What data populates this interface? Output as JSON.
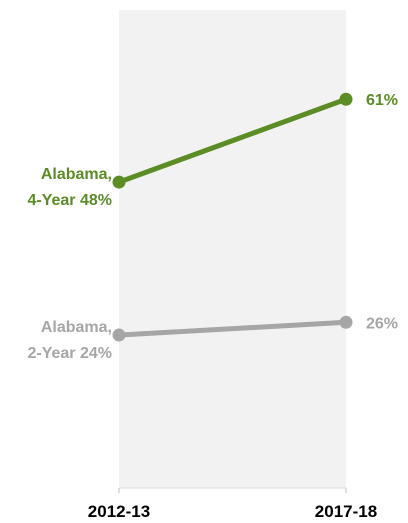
{
  "chart_data": {
    "type": "line",
    "title": "",
    "xlabel": "",
    "ylabel": "",
    "categories": [
      "2012-13",
      "2017-18"
    ],
    "ylim": [
      0,
      75
    ],
    "grid": false,
    "legend": "none",
    "series": [
      {
        "name": "Alabama, 4-Year",
        "name_lines": [
          "Alabama,",
          "4-Year 48%"
        ],
        "values": [
          48,
          61
        ],
        "labels": [
          "48%",
          "61%"
        ],
        "color": "#5b8c25"
      },
      {
        "name": "Alabama, 2-Year",
        "name_lines": [
          "Alabama,",
          "2-Year 24%"
        ],
        "values": [
          24,
          26
        ],
        "labels": [
          "24%",
          "26%"
        ],
        "color": "#a6a6a6"
      }
    ],
    "plot_background": "#f2f2f2"
  }
}
